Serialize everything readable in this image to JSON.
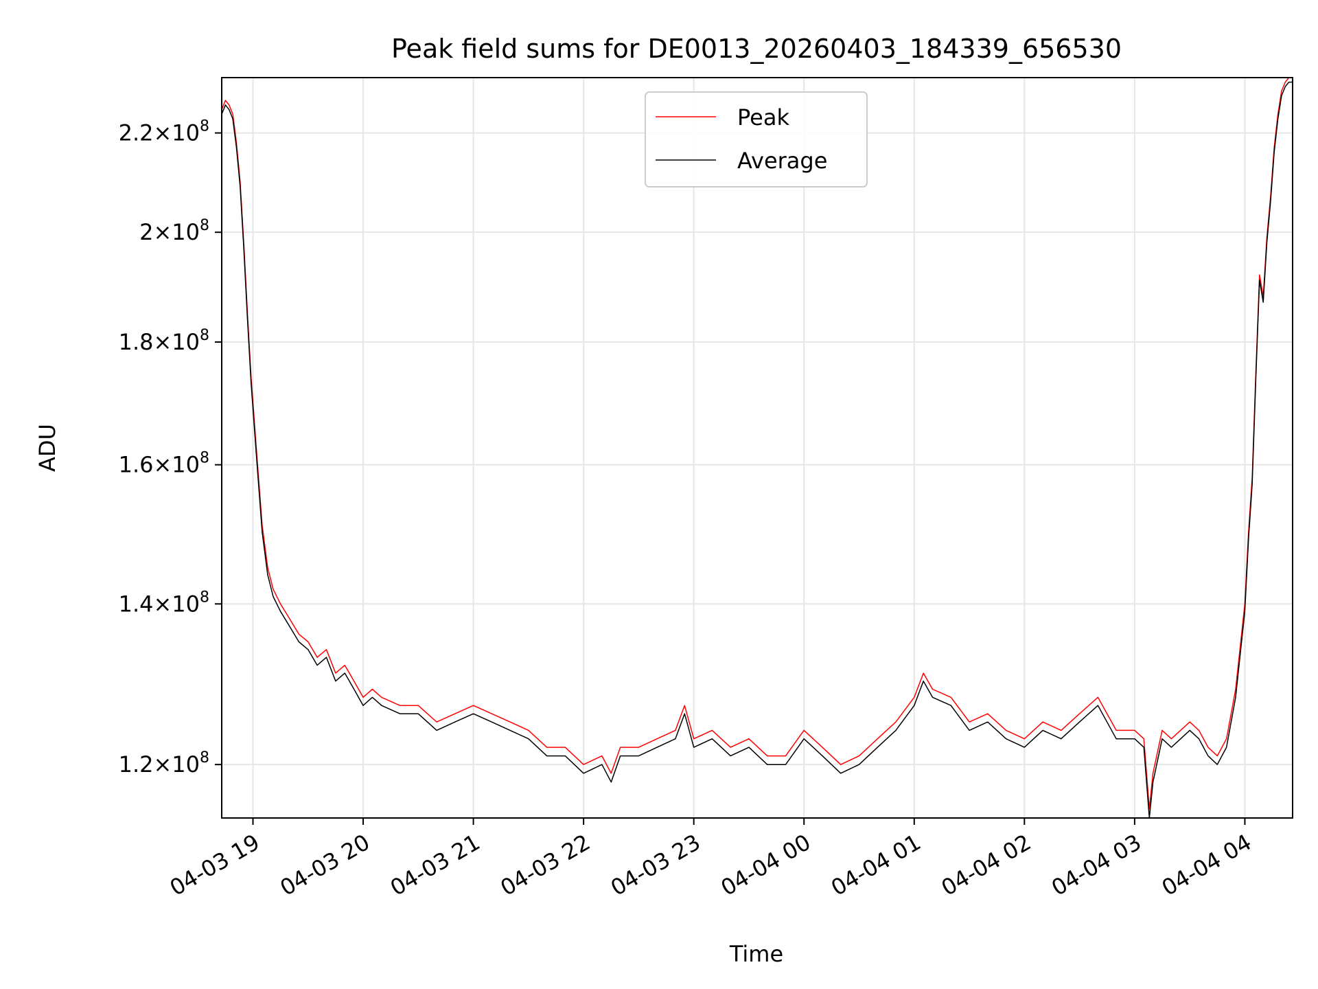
{
  "chart_data": {
    "type": "line",
    "title": "Peak field sums for DE0013_20260403_184339_656530",
    "xlabel": "Time",
    "ylabel": "ADU",
    "y_scale": "log",
    "grid": true,
    "legend_position": "top-center",
    "xlim": [
      "2026-04-03 18:43",
      "2026-04-04 04:26"
    ],
    "ylim": [
      114000000.0,
      232000000.0
    ],
    "x_ticks": [
      {
        "t": "2026-04-03 19:00",
        "label": "04-03 19"
      },
      {
        "t": "2026-04-03 20:00",
        "label": "04-03 20"
      },
      {
        "t": "2026-04-03 21:00",
        "label": "04-03 21"
      },
      {
        "t": "2026-04-03 22:00",
        "label": "04-03 22"
      },
      {
        "t": "2026-04-03 23:00",
        "label": "04-03 23"
      },
      {
        "t": "2026-04-04 00:00",
        "label": "04-04 00"
      },
      {
        "t": "2026-04-04 01:00",
        "label": "04-04 01"
      },
      {
        "t": "2026-04-04 02:00",
        "label": "04-04 02"
      },
      {
        "t": "2026-04-04 03:00",
        "label": "04-04 03"
      },
      {
        "t": "2026-04-04 04:00",
        "label": "04-04 04"
      }
    ],
    "y_ticks": [
      {
        "value": 120000000,
        "mantissa": "1.2",
        "exponent": "8"
      },
      {
        "value": 140000000,
        "mantissa": "1.4",
        "exponent": "8"
      },
      {
        "value": 160000000,
        "mantissa": "1.6",
        "exponent": "8"
      },
      {
        "value": 180000000,
        "mantissa": "1.8",
        "exponent": "8"
      },
      {
        "value": 200000000,
        "mantissa": "2",
        "exponent": "8"
      },
      {
        "value": 220000000,
        "mantissa": "2.2",
        "exponent": "8"
      }
    ],
    "times": [
      "2026-04-03 18:43",
      "2026-04-03 18:45",
      "2026-04-03 18:47",
      "2026-04-03 18:49",
      "2026-04-03 18:51",
      "2026-04-03 18:53",
      "2026-04-03 18:55",
      "2026-04-03 18:57",
      "2026-04-03 18:59",
      "2026-04-03 19:02",
      "2026-04-03 19:05",
      "2026-04-03 19:08",
      "2026-04-03 19:11",
      "2026-04-03 19:15",
      "2026-04-03 19:20",
      "2026-04-03 19:25",
      "2026-04-03 19:30",
      "2026-04-03 19:35",
      "2026-04-03 19:40",
      "2026-04-03 19:45",
      "2026-04-03 19:50",
      "2026-04-03 19:55",
      "2026-04-03 20:00",
      "2026-04-03 20:05",
      "2026-04-03 20:10",
      "2026-04-03 20:20",
      "2026-04-03 20:30",
      "2026-04-03 20:40",
      "2026-04-03 20:50",
      "2026-04-03 21:00",
      "2026-04-03 21:10",
      "2026-04-03 21:20",
      "2026-04-03 21:30",
      "2026-04-03 21:40",
      "2026-04-03 21:50",
      "2026-04-03 22:00",
      "2026-04-03 22:10",
      "2026-04-03 22:15",
      "2026-04-03 22:20",
      "2026-04-03 22:30",
      "2026-04-03 22:40",
      "2026-04-03 22:50",
      "2026-04-03 22:55",
      "2026-04-03 23:00",
      "2026-04-03 23:10",
      "2026-04-03 23:20",
      "2026-04-03 23:30",
      "2026-04-03 23:40",
      "2026-04-03 23:50",
      "2026-04-04 00:00",
      "2026-04-04 00:10",
      "2026-04-04 00:20",
      "2026-04-04 00:30",
      "2026-04-04 00:40",
      "2026-04-04 00:50",
      "2026-04-04 01:00",
      "2026-04-04 01:05",
      "2026-04-04 01:10",
      "2026-04-04 01:20",
      "2026-04-04 01:30",
      "2026-04-04 01:40",
      "2026-04-04 01:50",
      "2026-04-04 02:00",
      "2026-04-04 02:10",
      "2026-04-04 02:20",
      "2026-04-04 02:30",
      "2026-04-04 02:40",
      "2026-04-04 02:50",
      "2026-04-04 03:00",
      "2026-04-04 03:05",
      "2026-04-04 03:08",
      "2026-04-04 03:10",
      "2026-04-04 03:15",
      "2026-04-04 03:20",
      "2026-04-04 03:30",
      "2026-04-04 03:35",
      "2026-04-04 03:40",
      "2026-04-04 03:45",
      "2026-04-04 03:50",
      "2026-04-04 03:55",
      "2026-04-04 04:00",
      "2026-04-04 04:02",
      "2026-04-04 04:04",
      "2026-04-04 04:06",
      "2026-04-04 04:08",
      "2026-04-04 04:10",
      "2026-04-04 04:12",
      "2026-04-04 04:14",
      "2026-04-04 04:16",
      "2026-04-04 04:18",
      "2026-04-04 04:20",
      "2026-04-04 04:22",
      "2026-04-04 04:24",
      "2026-04-04 04:26"
    ],
    "series": [
      {
        "name": "Peak",
        "color": "#ff0000",
        "values": [
          225000000.0,
          227000000.0,
          226000000.0,
          224000000.0,
          218000000.0,
          210000000.0,
          198000000.0,
          185000000.0,
          174000000.0,
          162000000.0,
          151000000.0,
          145000000.0,
          142000000.0,
          140000000.0,
          138000000.0,
          136000000.0,
          135000000.0,
          133000000.0,
          134000000.0,
          131000000.0,
          132000000.0,
          130000000.0,
          128000000.0,
          129000000.0,
          128000000.0,
          127000000.0,
          127000000.0,
          125000000.0,
          126000000.0,
          127000000.0,
          126000000.0,
          125000000.0,
          124000000.0,
          122000000.0,
          122000000.0,
          120000000.0,
          121000000.0,
          119000000.0,
          122000000.0,
          122000000.0,
          123000000.0,
          124000000.0,
          127000000.0,
          123000000.0,
          124000000.0,
          122000000.0,
          123000000.0,
          121000000.0,
          121000000.0,
          124000000.0,
          122000000.0,
          120000000.0,
          121000000.0,
          123000000.0,
          125000000.0,
          128000000.0,
          131000000.0,
          129000000.0,
          128000000.0,
          125000000.0,
          126000000.0,
          124000000.0,
          123000000.0,
          125000000.0,
          124000000.0,
          126000000.0,
          128000000.0,
          124000000.0,
          124000000.0,
          123000000.0,
          115000000.0,
          119000000.0,
          124000000.0,
          123000000.0,
          125000000.0,
          124000000.0,
          122000000.0,
          121000000.0,
          123000000.0,
          129000000.0,
          140000000.0,
          150000000.0,
          158000000.0,
          175000000.0,
          192000000.0,
          188000000.0,
          199000000.0,
          207000000.0,
          217000000.0,
          224000000.0,
          229000000.0,
          231000000.0,
          232000000.0,
          232000000.0
        ]
      },
      {
        "name": "Average",
        "color": "#000000",
        "values": [
          224000000.0,
          226000000.0,
          225000000.0,
          223000000.0,
          217000000.0,
          209000000.0,
          197000000.0,
          184000000.0,
          173000000.0,
          161000000.0,
          150000000.0,
          144000000.0,
          141000000.0,
          139000000.0,
          137000000.0,
          135000000.0,
          134000000.0,
          132000000.0,
          133000000.0,
          130000000.0,
          131000000.0,
          129000000.0,
          127000000.0,
          128000000.0,
          127000000.0,
          126000000.0,
          126000000.0,
          124000000.0,
          125000000.0,
          126000000.0,
          125000000.0,
          124000000.0,
          123000000.0,
          121000000.0,
          121000000.0,
          119000000.0,
          120000000.0,
          118000000.0,
          121000000.0,
          121000000.0,
          122000000.0,
          123000000.0,
          126000000.0,
          122000000.0,
          123000000.0,
          121000000.0,
          122000000.0,
          120000000.0,
          120000000.0,
          123000000.0,
          121000000.0,
          119000000.0,
          120000000.0,
          122000000.0,
          124000000.0,
          127000000.0,
          130000000.0,
          128000000.0,
          127000000.0,
          124000000.0,
          125000000.0,
          123000000.0,
          122000000.0,
          124000000.0,
          123000000.0,
          125000000.0,
          127000000.0,
          123000000.0,
          123000000.0,
          122000000.0,
          114000000.0,
          118000000.0,
          123000000.0,
          122000000.0,
          124000000.0,
          123000000.0,
          121000000.0,
          120000000.0,
          122000000.0,
          128000000.0,
          139000000.0,
          149000000.0,
          157000000.0,
          174000000.0,
          191000000.0,
          187000000.0,
          198000000.0,
          206000000.0,
          216000000.0,
          223000000.0,
          228000000.0,
          230000000.0,
          231000000.0,
          231000000.0
        ]
      }
    ]
  }
}
